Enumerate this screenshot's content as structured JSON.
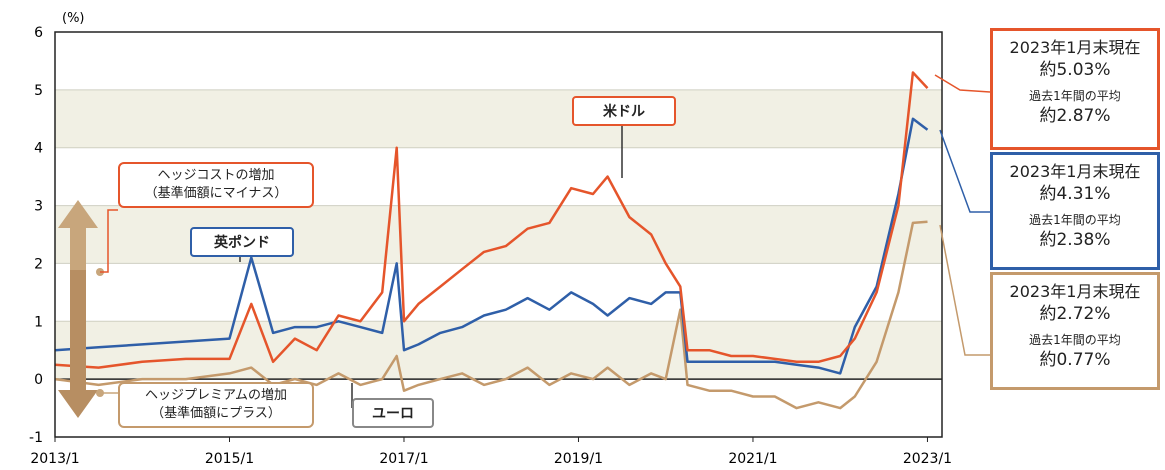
{
  "chart_data": {
    "type": "line",
    "title": "",
    "ylabel_unit": "(%)",
    "ylim": [
      -1,
      6
    ],
    "yticks": [
      "-1",
      "0",
      "1",
      "2",
      "3",
      "4",
      "5",
      "6"
    ],
    "xtick_labels": [
      "2013/1",
      "2015/1",
      "2017/1",
      "2019/1",
      "2021/1",
      "2023/1"
    ],
    "xlim": [
      "2013-01",
      "2023-03"
    ],
    "series": [
      {
        "name": "米ドル",
        "color": "#e5552b",
        "x": [
          "2013-01",
          "2013-07",
          "2014-01",
          "2014-07",
          "2015-01",
          "2015-04",
          "2015-07",
          "2015-10",
          "2016-01",
          "2016-04",
          "2016-07",
          "2016-10",
          "2016-12",
          "2017-01",
          "2017-03",
          "2017-06",
          "2017-09",
          "2017-12",
          "2018-03",
          "2018-06",
          "2018-09",
          "2018-12",
          "2019-03",
          "2019-05",
          "2019-08",
          "2019-11",
          "2020-01",
          "2020-03",
          "2020-04",
          "2020-07",
          "2020-10",
          "2021-01",
          "2021-04",
          "2021-07",
          "2021-10",
          "2022-01",
          "2022-03",
          "2022-06",
          "2022-09",
          "2022-11",
          "2023-01"
        ],
        "values": [
          0.25,
          0.2,
          0.3,
          0.35,
          0.35,
          1.3,
          0.3,
          0.7,
          0.5,
          1.1,
          1.0,
          1.5,
          4.0,
          1.0,
          1.3,
          1.6,
          1.9,
          2.2,
          2.3,
          2.6,
          2.7,
          3.3,
          3.2,
          3.5,
          2.8,
          2.5,
          2.0,
          1.6,
          0.5,
          0.5,
          0.4,
          0.4,
          0.35,
          0.3,
          0.3,
          0.4,
          0.7,
          1.5,
          3.0,
          5.3,
          5.03
        ]
      },
      {
        "name": "英ポンド",
        "color": "#2f5fa8",
        "x": [
          "2013-01",
          "2013-07",
          "2014-01",
          "2014-07",
          "2015-01",
          "2015-04",
          "2015-07",
          "2015-10",
          "2016-01",
          "2016-04",
          "2016-07",
          "2016-10",
          "2016-12",
          "2017-01",
          "2017-03",
          "2017-06",
          "2017-09",
          "2017-12",
          "2018-03",
          "2018-06",
          "2018-09",
          "2018-12",
          "2019-03",
          "2019-05",
          "2019-08",
          "2019-11",
          "2020-01",
          "2020-03",
          "2020-04",
          "2020-07",
          "2020-10",
          "2021-01",
          "2021-04",
          "2021-07",
          "2021-10",
          "2022-01",
          "2022-03",
          "2022-06",
          "2022-09",
          "2022-11",
          "2023-01"
        ],
        "values": [
          0.5,
          0.55,
          0.6,
          0.65,
          0.7,
          2.1,
          0.8,
          0.9,
          0.9,
          1.0,
          0.9,
          0.8,
          2.0,
          0.5,
          0.6,
          0.8,
          0.9,
          1.1,
          1.2,
          1.4,
          1.2,
          1.5,
          1.3,
          1.1,
          1.4,
          1.3,
          1.5,
          1.5,
          0.3,
          0.3,
          0.3,
          0.3,
          0.3,
          0.25,
          0.2,
          0.1,
          0.9,
          1.6,
          3.2,
          4.5,
          4.31
        ]
      },
      {
        "name": "ユーロ",
        "color": "#c49a6c",
        "x": [
          "2013-01",
          "2013-07",
          "2014-01",
          "2014-07",
          "2015-01",
          "2015-04",
          "2015-07",
          "2015-10",
          "2016-01",
          "2016-04",
          "2016-07",
          "2016-10",
          "2016-12",
          "2017-01",
          "2017-03",
          "2017-06",
          "2017-09",
          "2017-12",
          "2018-03",
          "2018-06",
          "2018-09",
          "2018-12",
          "2019-03",
          "2019-05",
          "2019-08",
          "2019-11",
          "2020-01",
          "2020-03",
          "2020-04",
          "2020-07",
          "2020-10",
          "2021-01",
          "2021-04",
          "2021-07",
          "2021-10",
          "2022-01",
          "2022-03",
          "2022-06",
          "2022-09",
          "2022-11",
          "2023-01"
        ],
        "values": [
          0.0,
          -0.1,
          0.0,
          0.0,
          0.1,
          0.2,
          -0.1,
          0.0,
          -0.1,
          0.1,
          -0.1,
          0.0,
          0.4,
          -0.2,
          -0.1,
          0.0,
          0.1,
          -0.1,
          0.0,
          0.2,
          -0.1,
          0.1,
          0.0,
          0.2,
          -0.1,
          0.1,
          0.0,
          1.2,
          -0.1,
          -0.2,
          -0.2,
          -0.3,
          -0.3,
          -0.5,
          -0.4,
          -0.5,
          -0.3,
          0.3,
          1.5,
          2.7,
          2.72
        ]
      }
    ],
    "grid_bands": true
  },
  "labels": {
    "usd_tag": "米ドル",
    "gbp_tag": "英ポンド",
    "eur_tag": "ユーロ",
    "hedge_cost": "ヘッジコストの増加\n（基準価額にマイナス）",
    "hedge_premium": "ヘッジプレミアムの増加\n（基準価額にプラス）"
  },
  "boxes": [
    {
      "id": "usd",
      "color": "#e5552b",
      "line1": "2023年1月末現在",
      "line2": "約5.03%",
      "line3": "過去1年間の平均",
      "line4": "約2.87%"
    },
    {
      "id": "gbp",
      "color": "#2f5fa8",
      "line1": "2023年1月末現在",
      "line2": "約4.31%",
      "line3": "過去1年間の平均",
      "line4": "約2.38%"
    },
    {
      "id": "eur",
      "color": "#c49a6c",
      "line1": "2023年1月末現在",
      "line2": "約2.72%",
      "line3": "過去1年間の平均",
      "line4": "約0.77%"
    }
  ],
  "colors": {
    "band": "#f1f0e4",
    "axis": "#222222",
    "arrow": "#c8a67c"
  }
}
